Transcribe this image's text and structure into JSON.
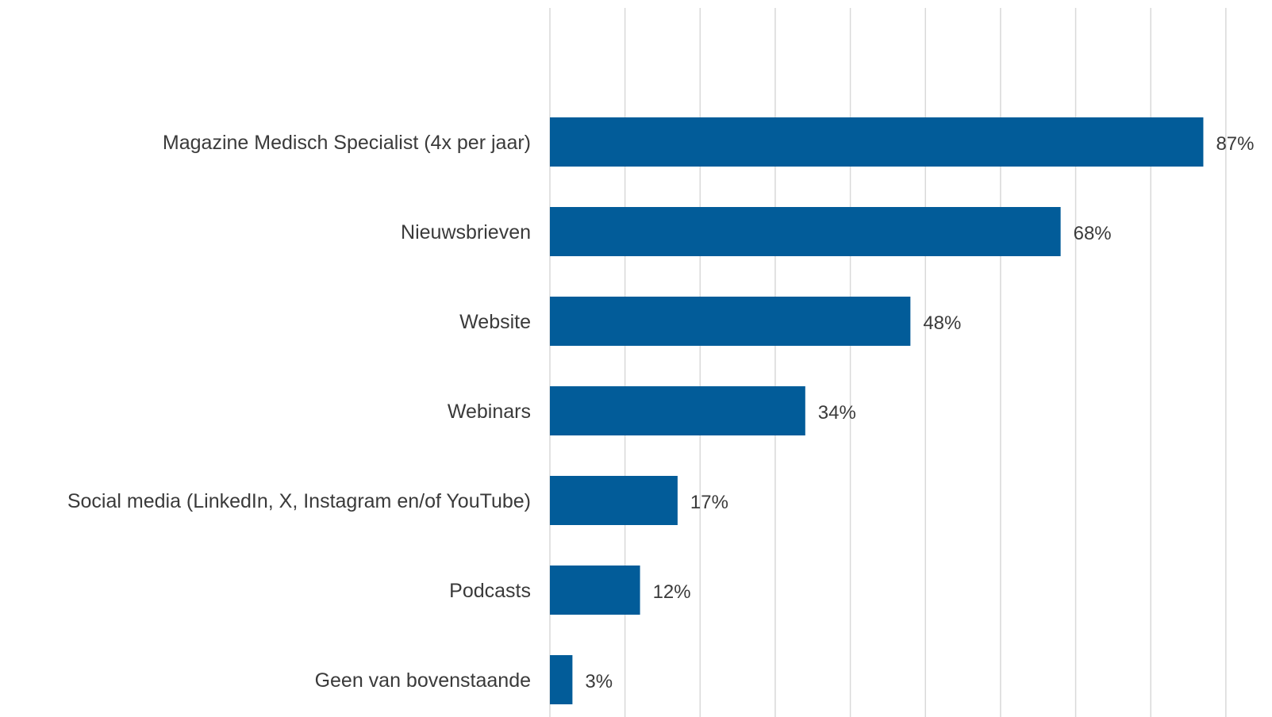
{
  "chart_data": {
    "type": "bar",
    "orientation": "horizontal",
    "categories": [
      "Magazine Medisch Specialist (4x per jaar)",
      "Nieuwsbrieven",
      "Website",
      "Webinars",
      "Social media (LinkedIn, X, Instagram en/of YouTube)",
      "Podcasts",
      "Geen van bovenstaande"
    ],
    "values": [
      87,
      68,
      48,
      34,
      17,
      12,
      3
    ],
    "value_labels": [
      "87%",
      "68%",
      "48%",
      "34%",
      "17%",
      "12%",
      "3%"
    ],
    "xlim": [
      0,
      90
    ],
    "grid": true,
    "legend": "none",
    "bar_color": "#025c99"
  }
}
